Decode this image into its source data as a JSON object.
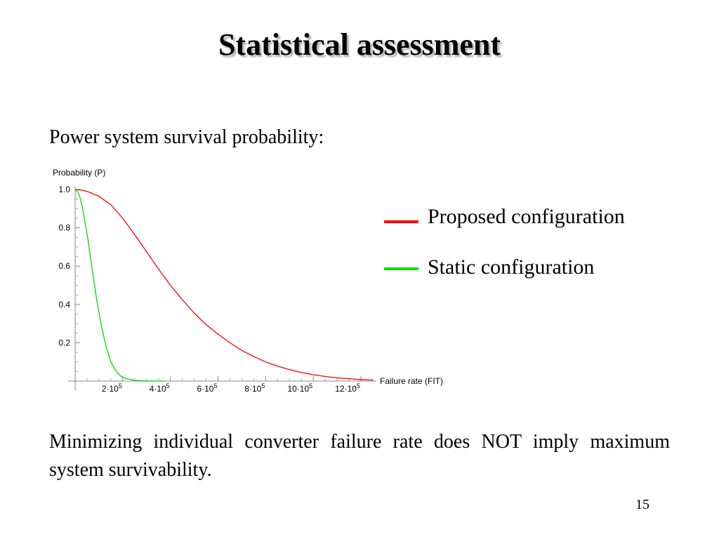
{
  "slide": {
    "title": "Statistical assessment",
    "subtitle": "Power system survival probability:",
    "conclusion": "Minimizing individual converter failure rate does NOT imply maximum system survivability.",
    "page_number": "15"
  },
  "chart_data": {
    "type": "line",
    "title": "",
    "xlabel": "Failure rate (FIT)",
    "ylabel": "Probability (P)",
    "xlim": [
      0,
      1300000
    ],
    "ylim": [
      0,
      1.0
    ],
    "x_ticks": [
      {
        "value": 200000,
        "mant": "2",
        "exp": "5"
      },
      {
        "value": 400000,
        "mant": "4",
        "exp": "5"
      },
      {
        "value": 600000,
        "mant": "6",
        "exp": "5"
      },
      {
        "value": 800000,
        "mant": "8",
        "exp": "5"
      },
      {
        "value": 1000000,
        "mant": "10",
        "exp": "5"
      },
      {
        "value": 1200000,
        "mant": "12",
        "exp": "5"
      }
    ],
    "y_ticks": [
      {
        "value": 0.2,
        "label": "0.2"
      },
      {
        "value": 0.4,
        "label": "0.4"
      },
      {
        "value": 0.6,
        "label": "0.6"
      },
      {
        "value": 0.8,
        "label": "0.8"
      },
      {
        "value": 1.0,
        "label": "1.0"
      }
    ],
    "grid": false,
    "legend_position": "right",
    "series": [
      {
        "name": "Proposed configuration",
        "color": "#ff0000",
        "x": [
          0,
          25000,
          50000,
          100000,
          150000,
          200000,
          250000,
          300000,
          350000,
          400000,
          450000,
          500000,
          550000,
          600000,
          650000,
          700000,
          750000,
          800000,
          850000,
          900000,
          950000,
          1000000,
          1050000,
          1100000,
          1150000,
          1200000,
          1250000
        ],
        "y": [
          1.0,
          0.997,
          0.99,
          0.965,
          0.92,
          0.85,
          0.765,
          0.675,
          0.585,
          0.5,
          0.425,
          0.355,
          0.295,
          0.245,
          0.2,
          0.16,
          0.128,
          0.1,
          0.078,
          0.06,
          0.045,
          0.033,
          0.024,
          0.017,
          0.012,
          0.008,
          0.005
        ]
      },
      {
        "name": "Static configuration",
        "color": "#00e000",
        "x": [
          0,
          10000,
          20000,
          30000,
          50000,
          70000,
          90000,
          110000,
          130000,
          150000,
          170000,
          190000,
          210000,
          250000,
          300000,
          380000
        ],
        "y": [
          1.0,
          0.99,
          0.96,
          0.91,
          0.77,
          0.6,
          0.43,
          0.29,
          0.18,
          0.1,
          0.055,
          0.028,
          0.014,
          0.004,
          0.001,
          0.0
        ]
      }
    ]
  }
}
